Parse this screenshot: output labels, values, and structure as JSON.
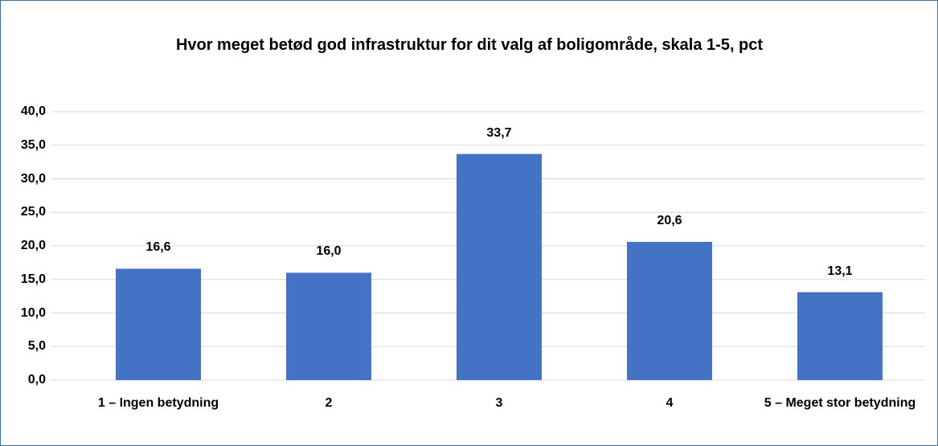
{
  "chart_data": {
    "type": "bar",
    "title": "Hvor meget betød god infrastruktur for dit valg af boligområde, skala 1-5, pct",
    "categories": [
      "1 – Ingen betydning",
      "2",
      "3",
      "4",
      "5 – Meget stor betydning"
    ],
    "values": [
      16.6,
      16.0,
      33.7,
      20.6,
      13.1
    ],
    "value_labels": [
      "16,6",
      "16,0",
      "33,7",
      "20,6",
      "13,1"
    ],
    "color": "#4472c4",
    "ylim": [
      0,
      40
    ],
    "yticks": [
      {
        "value": 0,
        "label": "0,0"
      },
      {
        "value": 5,
        "label": "5,0"
      },
      {
        "value": 10,
        "label": "10,0"
      },
      {
        "value": 15,
        "label": "15,0"
      },
      {
        "value": 20,
        "label": "20,0"
      },
      {
        "value": 25,
        "label": "25,0"
      },
      {
        "value": 30,
        "label": "30,0"
      },
      {
        "value": 35,
        "label": "35,0"
      },
      {
        "value": 40,
        "label": "40,0"
      }
    ],
    "grid": true
  }
}
